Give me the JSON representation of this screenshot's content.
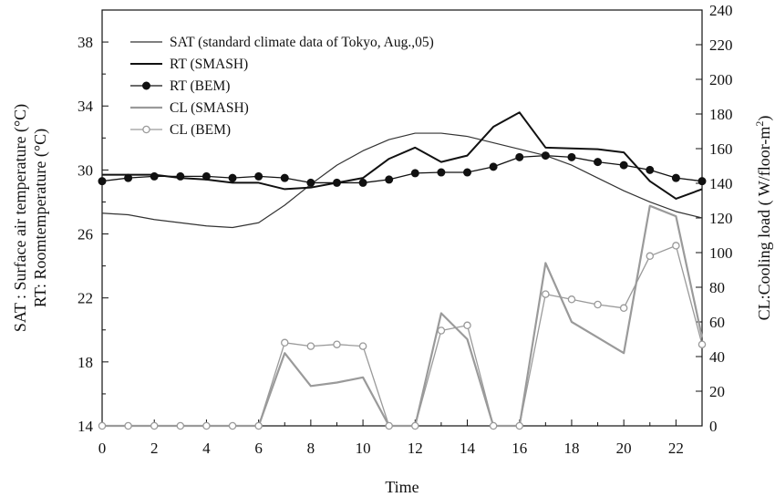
{
  "chart_data": {
    "type": "line",
    "xlabel": "Time",
    "ylabel_left_lines": [
      "SAT : Surface air temperature (°C)",
      "RT: Roomtemperature (°C)"
    ],
    "ylabel_right": "CL:Cooling load ( W/floor-m",
    "ylabel_right_sup": "2",
    "ylabel_right_end": ")",
    "xlim": [
      0,
      23
    ],
    "ylim_left": [
      14,
      40
    ],
    "ylim_right": [
      0,
      240
    ],
    "x_ticks": [
      0,
      2,
      4,
      6,
      8,
      10,
      12,
      14,
      16,
      18,
      20,
      22
    ],
    "x_tick_labels": [
      "0",
      "2",
      "4",
      "6",
      "8",
      "10",
      "12",
      "14",
      "16",
      "18",
      "20",
      "22"
    ],
    "y_left_ticks": [
      14,
      18,
      22,
      26,
      30,
      34,
      38
    ],
    "y_left_tick_labels": [
      "14",
      "18",
      "22",
      "26",
      "30",
      "34",
      "38"
    ],
    "y_right_ticks": [
      0,
      20,
      40,
      60,
      80,
      100,
      120,
      140,
      160,
      180,
      200,
      220,
      240
    ],
    "y_right_tick_labels": [
      "0",
      "20",
      "40",
      "60",
      "80",
      "100",
      "120",
      "140",
      "160",
      "180",
      "200",
      "220",
      "240"
    ],
    "legend_position": "top-left",
    "series": [
      {
        "name": "SAT (standard climate data of Tokyo, Aug.,05)",
        "axis": "left",
        "color": "#333333",
        "width": 1.2,
        "marker": "none",
        "x": [
          0,
          1,
          2,
          3,
          4,
          5,
          6,
          7,
          8,
          9,
          10,
          11,
          12,
          13,
          14,
          15,
          16,
          17,
          18,
          19,
          20,
          21,
          22,
          23
        ],
        "values": [
          27.3,
          27.2,
          26.9,
          26.7,
          26.5,
          26.4,
          26.7,
          27.8,
          29.1,
          30.3,
          31.2,
          31.9,
          32.3,
          32.3,
          32.1,
          31.7,
          31.3,
          30.9,
          30.3,
          29.5,
          28.7,
          28.0,
          27.4,
          27.0
        ]
      },
      {
        "name": "RT (SMASH)",
        "axis": "left",
        "color": "#111111",
        "width": 2.0,
        "marker": "none",
        "x": [
          0,
          1,
          2,
          3,
          4,
          5,
          6,
          7,
          8,
          9,
          10,
          11,
          12,
          13,
          14,
          15,
          16,
          17,
          18,
          19,
          20,
          21,
          22,
          23
        ],
        "values": [
          29.7,
          29.7,
          29.7,
          29.5,
          29.4,
          29.2,
          29.2,
          28.8,
          28.9,
          29.2,
          29.5,
          30.7,
          31.4,
          30.5,
          30.9,
          32.7,
          33.6,
          31.4,
          31.35,
          31.3,
          31.1,
          29.3,
          28.2,
          28.8
        ]
      },
      {
        "name": "RT (BEM)",
        "axis": "left",
        "color": "#111111",
        "width": 1.3,
        "marker": "filled-circle",
        "x": [
          0,
          1,
          2,
          3,
          4,
          5,
          6,
          7,
          8,
          9,
          10,
          11,
          12,
          13,
          14,
          15,
          16,
          17,
          18,
          19,
          20,
          21,
          22,
          23
        ],
        "values": [
          29.3,
          29.5,
          29.6,
          29.6,
          29.6,
          29.5,
          29.6,
          29.5,
          29.2,
          29.2,
          29.2,
          29.4,
          29.8,
          29.85,
          29.85,
          30.2,
          30.8,
          30.9,
          30.8,
          30.5,
          30.3,
          30.0,
          29.5,
          29.3
        ]
      },
      {
        "name": "CL (SMASH)",
        "axis": "right",
        "color": "#9a9a9a",
        "width": 2.2,
        "marker": "none",
        "x": [
          0,
          1,
          2,
          3,
          4,
          5,
          6,
          7,
          8,
          9,
          10,
          11,
          12,
          13,
          14,
          15,
          16,
          17,
          18,
          19,
          20,
          21,
          22,
          23
        ],
        "values": [
          0,
          0,
          0,
          0,
          0,
          0,
          0,
          42,
          23,
          25,
          28,
          0,
          0,
          65,
          50,
          0,
          0,
          94,
          60,
          51,
          42,
          127,
          121,
          51
        ]
      },
      {
        "name": "CL (BEM)",
        "axis": "right",
        "color": "#9a9a9a",
        "width": 1.3,
        "marker": "open-circle",
        "x": [
          0,
          1,
          2,
          3,
          4,
          5,
          6,
          7,
          8,
          9,
          10,
          11,
          12,
          13,
          14,
          15,
          16,
          17,
          18,
          19,
          20,
          21,
          22,
          23
        ],
        "values": [
          0,
          0,
          0,
          0,
          0,
          0,
          0,
          48,
          46,
          47,
          46,
          0,
          0,
          55,
          58,
          0,
          0,
          76,
          73,
          70,
          68,
          98,
          104,
          47
        ]
      }
    ]
  }
}
